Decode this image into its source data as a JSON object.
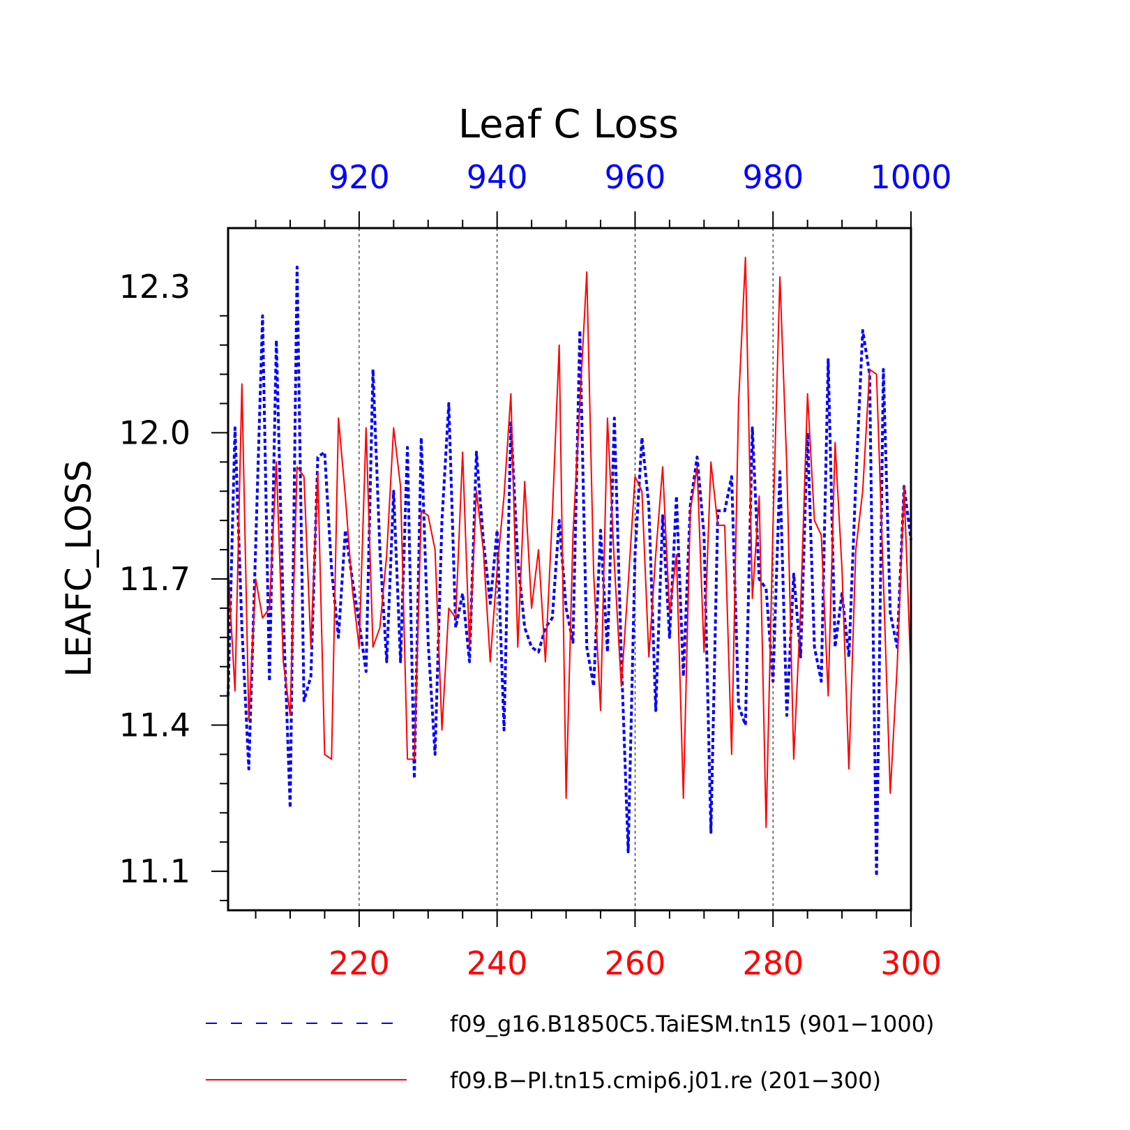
{
  "chart_data": {
    "type": "line",
    "title": "Leaf C Loss",
    "ylabel": "LEAFC_LOSS",
    "ylim": [
      11.02,
      12.42
    ],
    "yticks": [
      11.1,
      11.4,
      11.7,
      12.0,
      12.3
    ],
    "ytick_labels": [
      "11.1",
      "11.4",
      "11.7",
      "12.0",
      "12.3"
    ],
    "grid": "vertical dashed",
    "legend_position": "bottom",
    "bottom_axis": {
      "color": "#ff0000",
      "range": [
        201,
        300
      ],
      "ticks": [
        220,
        240,
        260,
        280,
        300
      ],
      "tick_labels": [
        "220",
        "240",
        "260",
        "280",
        "300"
      ]
    },
    "top_axis": {
      "color": "#0000ff",
      "range": [
        901,
        1000
      ],
      "ticks": [
        920,
        940,
        960,
        980,
        1000
      ],
      "tick_labels": [
        "920",
        "940",
        "960",
        "980",
        "1000"
      ]
    },
    "series": [
      {
        "name": "f09_g16.B1850C5.TaiESM.tn15 (901−1000)",
        "axis": "top",
        "color": "#0000ff",
        "style": "dashed",
        "x_start": 901,
        "values": [
          11.46,
          12.01,
          11.6,
          11.31,
          11.77,
          12.24,
          11.49,
          12.19,
          11.63,
          11.23,
          12.34,
          11.45,
          11.5,
          11.95,
          11.96,
          11.72,
          11.58,
          11.8,
          11.7,
          11.61,
          11.51,
          12.13,
          11.76,
          11.53,
          11.88,
          11.53,
          11.97,
          11.29,
          11.99,
          11.57,
          11.34,
          11.82,
          12.06,
          11.6,
          11.67,
          11.53,
          11.96,
          11.78,
          11.65,
          11.8,
          11.39,
          12.02,
          11.74,
          11.6,
          11.56,
          11.55,
          11.6,
          11.62,
          11.82,
          11.64,
          11.57,
          12.21,
          11.56,
          11.48,
          11.8,
          11.55,
          12.03,
          11.54,
          11.14,
          11.75,
          11.99,
          11.85,
          11.43,
          11.83,
          11.58,
          11.87,
          11.5,
          11.85,
          11.95,
          11.79,
          11.18,
          11.84,
          11.84,
          11.91,
          11.44,
          11.4,
          12.01,
          11.7,
          11.68,
          11.49,
          11.92,
          11.42,
          11.71,
          11.54,
          12.0,
          11.56,
          11.49,
          12.15,
          11.56,
          11.67,
          11.54,
          11.9,
          12.21,
          12.12,
          11.09,
          12.13,
          11.63,
          11.56,
          11.89,
          11.78
        ]
      },
      {
        "name": "f09.B−PI.tn15.cmip6.j01.re (201−300)",
        "axis": "bottom",
        "color": "#ff0000",
        "style": "solid",
        "x_start": 201,
        "values": [
          11.72,
          11.47,
          12.1,
          11.41,
          11.7,
          11.62,
          11.64,
          11.94,
          11.53,
          11.42,
          11.93,
          11.91,
          11.56,
          11.92,
          11.34,
          11.33,
          12.03,
          11.87,
          11.68,
          11.56,
          12.01,
          11.56,
          11.6,
          11.75,
          12.01,
          11.89,
          11.33,
          11.33,
          11.84,
          11.83,
          11.76,
          11.39,
          11.64,
          11.62,
          11.96,
          11.56,
          11.88,
          11.76,
          11.53,
          11.72,
          11.87,
          12.08,
          11.56,
          11.9,
          11.64,
          11.76,
          11.53,
          11.83,
          12.18,
          11.25,
          11.79,
          12.06,
          12.33,
          11.71,
          11.43,
          12.03,
          11.73,
          11.48,
          11.69,
          11.91,
          11.88,
          11.54,
          11.75,
          11.93,
          11.63,
          11.75,
          11.25,
          11.84,
          11.93,
          11.55,
          11.94,
          11.81,
          11.81,
          11.34,
          12.06,
          12.36,
          11.66,
          11.87,
          11.19,
          11.81,
          12.32,
          11.93,
          11.33,
          11.64,
          12.08,
          11.82,
          11.79,
          11.46,
          11.98,
          11.72,
          11.31,
          11.76,
          11.88,
          12.13,
          12.12,
          11.7,
          11.26,
          11.52,
          11.89,
          11.5
        ]
      }
    ]
  }
}
